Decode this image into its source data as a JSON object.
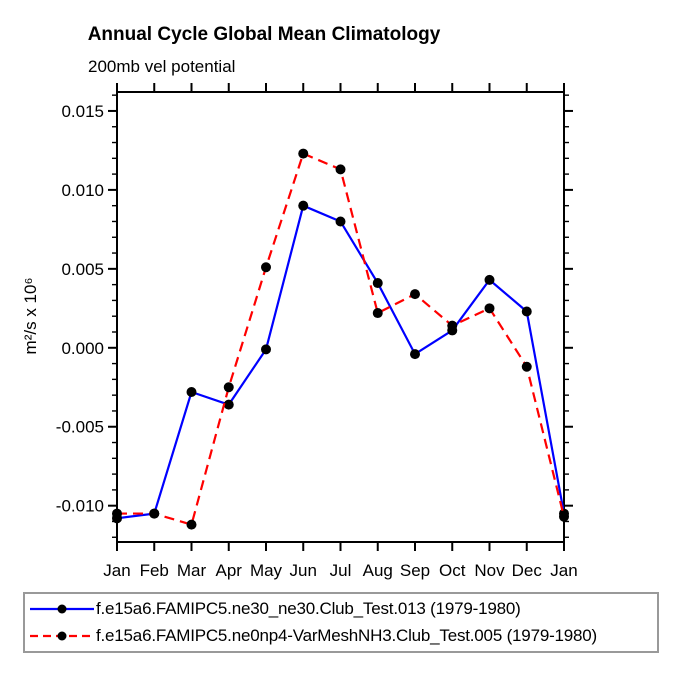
{
  "title": "Annual Cycle Global Mean Climatology",
  "subtitle": "200mb vel potential",
  "y_axis_label": "m²/s x 10⁶",
  "chart_data": {
    "type": "line",
    "categories": [
      "Jan",
      "Feb",
      "Mar",
      "Apr",
      "May",
      "Jun",
      "Jul",
      "Aug",
      "Sep",
      "Oct",
      "Nov",
      "Dec",
      "Jan"
    ],
    "series": [
      {
        "name": "f.e15a6.FAMIPC5.ne30_ne30.Club_Test.013 (1979-1980)",
        "color": "#0000ff",
        "style": "solid",
        "values": [
          -0.0108,
          -0.0105,
          -0.0028,
          -0.0036,
          -0.0001,
          0.009,
          0.008,
          0.0041,
          -0.0004,
          0.0011,
          0.0043,
          0.0023,
          -0.0105
        ]
      },
      {
        "name": "f.e15a6.FAMIPC5.ne0np4-VarMeshNH3.Club_Test.005 (1979-1980)",
        "color": "#ff0000",
        "style": "dashed",
        "values": [
          -0.0105,
          -0.0105,
          -0.0112,
          -0.0025,
          0.0051,
          0.0123,
          0.0113,
          0.0022,
          0.0034,
          0.0014,
          0.0025,
          -0.0012,
          -0.0107
        ]
      }
    ],
    "marker": "filled-circle",
    "marker_color": "#000000",
    "y_ticks_major": [
      0.015,
      0.01,
      0.005,
      0.0,
      -0.005,
      -0.01
    ],
    "y_tick_labels": [
      "0.015",
      "0.010",
      "0.005",
      "0.000",
      "-0.005",
      "-0.010"
    ],
    "y_minor_step": 0.001,
    "ylim": [
      -0.0123,
      0.0162
    ],
    "xlabel": "",
    "ylabel": "m²/s x 10⁶",
    "grid": false,
    "legend_position": "bottom"
  },
  "legend": {
    "note": "items mirror chart_data.series names"
  }
}
